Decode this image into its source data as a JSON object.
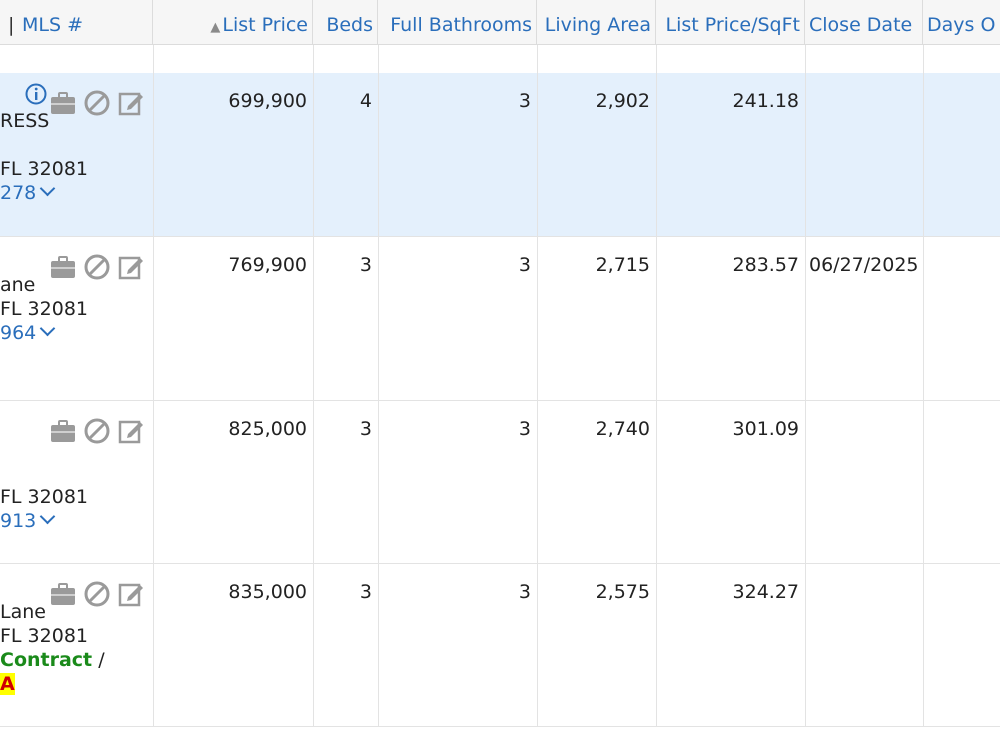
{
  "columns": {
    "mls": "MLS #",
    "list_price": "List Price",
    "beds": "Beds",
    "full_baths": "Full Bathrooms",
    "living_area": "Living Area",
    "price_sqft": "List Price/SqFt",
    "close_date": "Close Date",
    "days": "Days O"
  },
  "sort": {
    "column": "list_price",
    "direction": "ascending",
    "indicator": "triangle-up-icon"
  },
  "colors": {
    "link": "#2a6ebb",
    "selected_row": "#e4f0fc",
    "status_green": "#1a8a1a",
    "highlight": "#ffff00"
  },
  "rows": [
    {
      "addr1": "RESS",
      "addr2": "FL 32081",
      "mls": "278",
      "list_price": "699,900",
      "beds": "4",
      "full_baths": "3",
      "living_area": "2,902",
      "price_sqft": "241.18",
      "close_date": ""
    },
    {
      "addr1": "ane",
      "addr2": "FL 32081",
      "mls": "964",
      "list_price": "769,900",
      "beds": "3",
      "full_baths": "3",
      "living_area": "2,715",
      "price_sqft": "283.57",
      "close_date": "06/27/2025"
    },
    {
      "addr1": "",
      "addr2": "FL 32081",
      "mls": "913",
      "list_price": "825,000",
      "beds": "3",
      "full_baths": "3",
      "living_area": "2,740",
      "price_sqft": "301.09",
      "close_date": ""
    },
    {
      "addr1": "Lane",
      "addr2": "FL 32081",
      "status": "Contract",
      "status_sep": "/",
      "flag": "A",
      "list_price": "835,000",
      "beds": "3",
      "full_baths": "3",
      "living_area": "2,575",
      "price_sqft": "324.27",
      "close_date": ""
    }
  ]
}
